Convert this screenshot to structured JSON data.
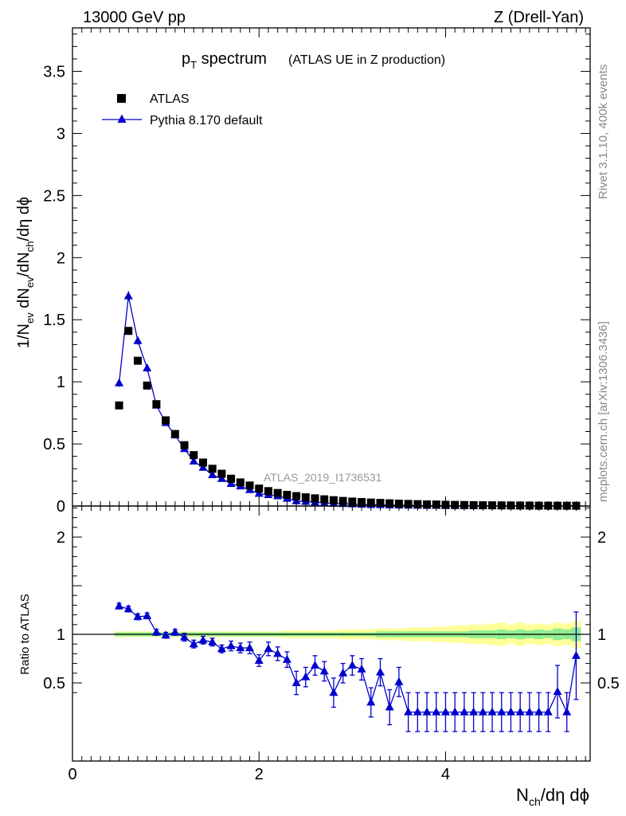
{
  "header": {
    "left": "13000 GeV pp",
    "right": "Z (Drell-Yan)"
  },
  "plot_title": {
    "main": "p",
    "main_sub": "T",
    "main_rest": " spectrum",
    "paren": "(ATLAS UE in Z production)"
  },
  "side_labels": {
    "rivet": "Rivet 3.1.10,  400k events",
    "mcplots": "mcplots.cern.ch [arXiv:1306.3436]"
  },
  "watermark": "ATLAS_2019_I1736531",
  "axes": {
    "ylabel_top": {
      "p1": "1/N",
      "s1": "ev",
      "p2": " dN",
      "s2": "ev",
      "p3": "/dN",
      "s3": "ch",
      "p4": "/dη dϕ"
    },
    "ylabel_bottom": "Ratio to ATLAS",
    "xlabel": {
      "p1": "N",
      "s1": "ch",
      "p2": "/dη dϕ"
    },
    "x_ticks": [
      "0",
      "2",
      "4"
    ],
    "y_ticks_top": [
      "0",
      "0.5",
      "1",
      "1.5",
      "2",
      "2.5",
      "3",
      "3.5"
    ],
    "y_ticks_bottom": [
      "0.5",
      "1",
      "2"
    ]
  },
  "legend": {
    "data": "ATLAS",
    "mc": "Pythia 8.170 default"
  },
  "colors": {
    "data": "#000000",
    "mc": "#0000cc",
    "band_inner": "#90ee90",
    "band_outer": "#ffff99"
  },
  "chart_data": {
    "type": "scatter",
    "xlim": [
      0,
      5.55
    ],
    "ylim_top": [
      0,
      3.85
    ],
    "ylim_bottom": [
      0.34,
      2.3
    ],
    "x": [
      0.5,
      0.6,
      0.7,
      0.8,
      0.9,
      1.0,
      1.1,
      1.2,
      1.3,
      1.4,
      1.5,
      1.6,
      1.7,
      1.8,
      1.9,
      2.0,
      2.1,
      2.2,
      2.3,
      2.4,
      2.5,
      2.6,
      2.7,
      2.8,
      2.9,
      3.0,
      3.1,
      3.2,
      3.3,
      3.4,
      3.5,
      3.6,
      3.7,
      3.8,
      3.9,
      4.0,
      4.1,
      4.2,
      4.3,
      4.4,
      4.5,
      4.6,
      4.7,
      4.8,
      4.9,
      5.0,
      5.1,
      5.2,
      5.3,
      5.4
    ],
    "series": [
      {
        "name": "ATLAS",
        "values": [
          0.81,
          1.41,
          1.17,
          0.97,
          0.82,
          0.69,
          0.58,
          0.49,
          0.41,
          0.35,
          0.3,
          0.26,
          0.22,
          0.19,
          0.165,
          0.14,
          0.12,
          0.105,
          0.09,
          0.08,
          0.07,
          0.062,
          0.054,
          0.047,
          0.041,
          0.036,
          0.032,
          0.028,
          0.025,
          0.022,
          0.019,
          0.017,
          0.015,
          0.013,
          0.012,
          0.01,
          0.009,
          0.008,
          0.007,
          0.006,
          0.0055,
          0.005,
          0.0045,
          0.004,
          0.0035,
          0.003,
          0.0028,
          0.0025,
          0.0022,
          0.002
        ]
      },
      {
        "name": "Pythia 8.170 default",
        "values": [
          0.99,
          1.69,
          1.33,
          1.11,
          0.81,
          0.67,
          0.57,
          0.46,
          0.36,
          0.31,
          0.25,
          0.22,
          0.18,
          0.16,
          0.13,
          0.1,
          0.09,
          0.08,
          0.06,
          0.04,
          0.035,
          0.03,
          0.025,
          0.02,
          0.018,
          0.015,
          0.012,
          0.01,
          0.009,
          0.007,
          0.006,
          0.005,
          0.004,
          0.003,
          0.003,
          0.002,
          0.002,
          0.002,
          0.002,
          0.001,
          0.001,
          0.001,
          0.001,
          0.001,
          0.001,
          0.001,
          0.001,
          0.001,
          0.001,
          0.002
        ],
        "errors": [
          0.03,
          0.04,
          0.03,
          0.03,
          0.02,
          0.02,
          0.02,
          0.01,
          0.01,
          0.01,
          0.01,
          0.01,
          0.01,
          0.01,
          0.01,
          0.01,
          0.01,
          0.01,
          0.01,
          0.01,
          0.01,
          0.01,
          0.01,
          0.01,
          0.01,
          0.01,
          0.01,
          0.01,
          0.01,
          0.01,
          0.01,
          0.01,
          0.01,
          0.01,
          0.01,
          0.01,
          0.01,
          0.01,
          0.01,
          0.01,
          0.01,
          0.01,
          0.01,
          0.01,
          0.01,
          0.01,
          0.01,
          0.01,
          0.01,
          0.01
        ]
      }
    ],
    "ratio": {
      "name": "Pythia 8.170 default",
      "values": [
        1.29,
        1.26,
        1.18,
        1.19,
        1.02,
        0.99,
        1.02,
        0.97,
        0.9,
        0.94,
        0.92,
        0.85,
        0.88,
        0.86,
        0.86,
        0.73,
        0.85,
        0.8,
        0.74,
        0.5,
        0.56,
        0.68,
        0.62,
        0.4,
        0.6,
        0.68,
        0.64,
        0.3,
        0.61,
        0.25,
        0.51,
        0.2,
        0.2,
        0.2,
        0.2,
        0.2,
        0.2,
        0.2,
        0.2,
        0.2,
        0.2,
        0.2,
        0.2,
        0.2,
        0.2,
        0.2,
        0.2,
        0.41,
        0.2,
        0.78
      ],
      "errors": [
        0.03,
        0.03,
        0.03,
        0.03,
        0.03,
        0.03,
        0.03,
        0.04,
        0.04,
        0.04,
        0.04,
        0.04,
        0.05,
        0.05,
        0.06,
        0.06,
        0.07,
        0.07,
        0.08,
        0.12,
        0.1,
        0.1,
        0.1,
        0.15,
        0.1,
        0.1,
        0.11,
        0.15,
        0.14,
        0.18,
        0.15,
        0.2,
        0.2,
        0.2,
        0.2,
        0.2,
        0.2,
        0.2,
        0.2,
        0.2,
        0.2,
        0.2,
        0.2,
        0.2,
        0.2,
        0.2,
        0.2,
        0.27,
        0.2,
        0.45
      ]
    },
    "uncertainty_band": {
      "inner": [
        0.02,
        0.02,
        0.02,
        0.02,
        0.02,
        0.02,
        0.02,
        0.02,
        0.02,
        0.02,
        0.02,
        0.02,
        0.02,
        0.02,
        0.02,
        0.02,
        0.02,
        0.02,
        0.02,
        0.02,
        0.02,
        0.02,
        0.02,
        0.02,
        0.02,
        0.02,
        0.02,
        0.02,
        0.03,
        0.03,
        0.03,
        0.03,
        0.03,
        0.03,
        0.03,
        0.03,
        0.03,
        0.03,
        0.04,
        0.04,
        0.04,
        0.05,
        0.04,
        0.05,
        0.04,
        0.05,
        0.04,
        0.06,
        0.05,
        0.07
      ],
      "outer": [
        0.03,
        0.03,
        0.03,
        0.03,
        0.03,
        0.03,
        0.03,
        0.03,
        0.03,
        0.03,
        0.03,
        0.03,
        0.03,
        0.03,
        0.03,
        0.03,
        0.03,
        0.03,
        0.04,
        0.04,
        0.04,
        0.04,
        0.04,
        0.04,
        0.05,
        0.05,
        0.05,
        0.05,
        0.06,
        0.06,
        0.06,
        0.07,
        0.07,
        0.07,
        0.08,
        0.08,
        0.09,
        0.09,
        0.1,
        0.1,
        0.11,
        0.12,
        0.1,
        0.12,
        0.1,
        0.11,
        0.1,
        0.12,
        0.11,
        0.14
      ]
    },
    "legend_position": "top-left",
    "grid": false
  }
}
